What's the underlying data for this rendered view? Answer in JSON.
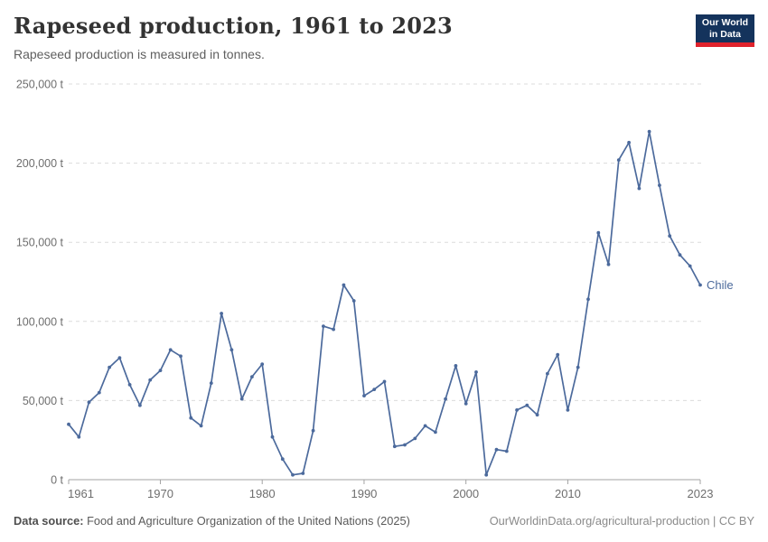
{
  "header": {
    "title": "Rapeseed production, 1961 to 2023",
    "subtitle": "Rapeseed production is measured in tonnes."
  },
  "logo": {
    "line1": "Our World",
    "line2": "in Data",
    "bg_color": "#14335c",
    "accent_color": "#e0232c"
  },
  "chart_data": {
    "type": "line",
    "title": "Rapeseed production, 1961 to 2023",
    "xlabel": "",
    "ylabel": "tonnes",
    "unit": "t",
    "xlim": [
      1961,
      2023
    ],
    "ylim": [
      0,
      250000
    ],
    "x_ticks": [
      1961,
      1970,
      1980,
      1990,
      2000,
      2010,
      2023
    ],
    "y_ticks": [
      0,
      50000,
      100000,
      150000,
      200000,
      250000
    ],
    "grid": "horizontal-dashed",
    "legend_position": "end-of-line-label",
    "years": [
      1961,
      1962,
      1963,
      1964,
      1965,
      1966,
      1967,
      1968,
      1969,
      1970,
      1971,
      1972,
      1973,
      1974,
      1975,
      1976,
      1977,
      1978,
      1979,
      1980,
      1981,
      1982,
      1983,
      1984,
      1985,
      1986,
      1987,
      1988,
      1989,
      1990,
      1991,
      1992,
      1993,
      1994,
      1995,
      1996,
      1997,
      1998,
      1999,
      2000,
      2001,
      2002,
      2003,
      2004,
      2005,
      2006,
      2007,
      2008,
      2009,
      2010,
      2011,
      2012,
      2013,
      2014,
      2015,
      2016,
      2017,
      2018,
      2019,
      2020,
      2021,
      2022,
      2023
    ],
    "series": [
      {
        "name": "Chile",
        "color": "#4c6a9c",
        "values": [
          35000,
          27000,
          49000,
          55000,
          71000,
          77000,
          60000,
          47000,
          63000,
          69000,
          82000,
          78000,
          39000,
          34000,
          61000,
          105000,
          82000,
          51000,
          65000,
          73000,
          27000,
          13000,
          3000,
          4000,
          31000,
          97000,
          95000,
          123000,
          113000,
          53000,
          57000,
          62000,
          21000,
          22000,
          26000,
          34000,
          30000,
          51000,
          72000,
          48000,
          68000,
          3000,
          19000,
          18000,
          44000,
          47000,
          41000,
          67000,
          79000,
          44000,
          71000,
          114000,
          156000,
          136000,
          202000,
          213000,
          184000,
          220000,
          186000,
          154000,
          142000,
          135000,
          123000
        ]
      }
    ],
    "colors": {
      "gridline": "#dcdcdc",
      "axis": "#a3a3a3",
      "tick_label": "#6e6e6e"
    }
  },
  "footer": {
    "source_label": "Data source:",
    "source_text": " Food and Agriculture Organization of the United Nations (2025)",
    "link_text": "OurWorldinData.org/agricultural-production | CC BY"
  }
}
